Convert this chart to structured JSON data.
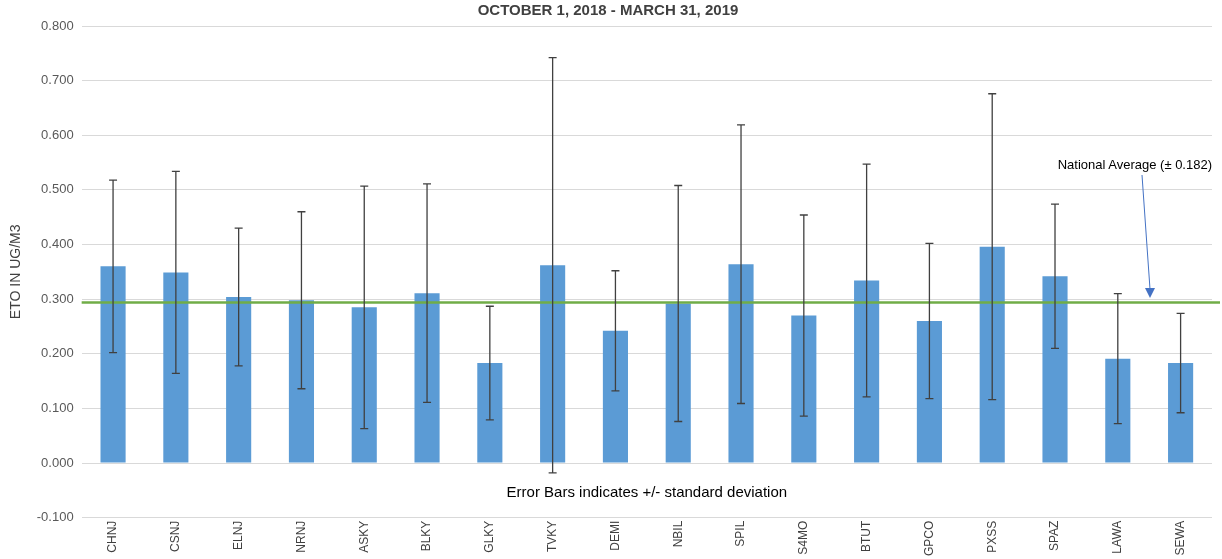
{
  "chart_data": {
    "type": "bar",
    "title": "OCTOBER 1, 2018 - MARCH 31, 2019",
    "ylabel": "ETO IN UG/M3",
    "categories": [
      "CHNJ",
      "CSNJ",
      "ELNJ",
      "NRNJ",
      "ASKY",
      "BLKY",
      "GLKY",
      "TVKY",
      "DEMI",
      "NBIL",
      "SPIL",
      "S4MO",
      "BTUT",
      "GPCO",
      "PXSS",
      "SPAZ",
      "LAWA",
      "SEWA"
    ],
    "series": [
      {
        "color": "#5b9bd5",
        "values": [
          0.36,
          0.349,
          0.304,
          0.298,
          0.285,
          0.311,
          0.183,
          0.362,
          0.242,
          0.292,
          0.364,
          0.27,
          0.334,
          0.26,
          0.396,
          0.342,
          0.191,
          0.183
        ],
        "errors": [
          0.158,
          0.185,
          0.126,
          0.162,
          0.222,
          0.2,
          0.104,
          0.38,
          0.11,
          0.216,
          0.255,
          0.184,
          0.213,
          0.142,
          0.28,
          0.132,
          0.119,
          0.091
        ]
      }
    ],
    "ylim": [
      -0.1,
      0.8
    ],
    "yticks": [
      {
        "value": -0.1,
        "label": "-0.100"
      },
      {
        "value": 0,
        "label": "0.000"
      },
      {
        "value": 0.1,
        "label": "0.100"
      },
      {
        "value": 0.2,
        "label": "0.200"
      },
      {
        "value": 0.3,
        "label": "0.300"
      },
      {
        "value": 0.4,
        "label": "0.400"
      },
      {
        "value": 0.5,
        "label": "0.500"
      },
      {
        "value": 0.6,
        "label": "0.600"
      },
      {
        "value": 0.7,
        "label": "0.700"
      },
      {
        "value": 0.8,
        "label": "0.800"
      }
    ],
    "grid": "y",
    "legend": false,
    "ref_lines": [
      {
        "axis": "y",
        "value": 0.294,
        "color": "#70ad47"
      }
    ],
    "annotations": [
      "Error Bars indicates +/- standard deviation",
      "National Average (± 0.182)"
    ]
  }
}
